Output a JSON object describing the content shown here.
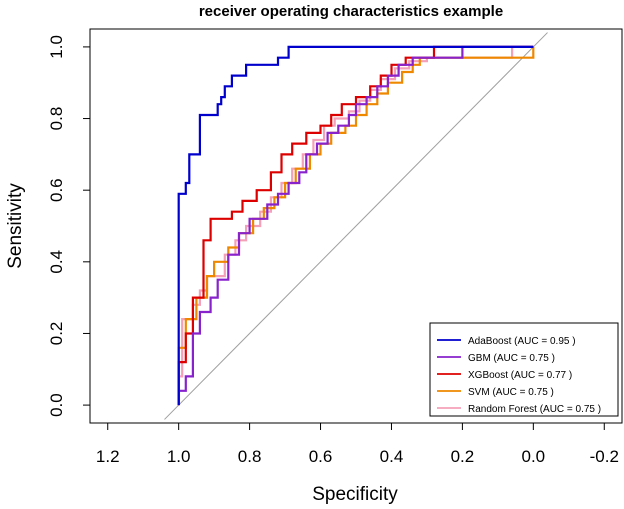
{
  "chart_data": {
    "type": "line",
    "title": "receiver operating characteristics example",
    "xlabel": "Specificity",
    "ylabel": "Sensitivity",
    "xlim": [
      1.25,
      -0.25
    ],
    "ylim": [
      -0.05,
      1.05
    ],
    "x_ticks": [
      1.2,
      1.0,
      0.8,
      0.6,
      0.4,
      0.2,
      0.0,
      -0.2
    ],
    "x_tick_labels": [
      "1.2",
      "1.0",
      "0.8",
      "0.6",
      "0.4",
      "0.2",
      "0.0",
      "-0.2"
    ],
    "y_ticks": [
      0.0,
      0.2,
      0.4,
      0.6,
      0.8,
      1.0
    ],
    "y_tick_labels": [
      "0.0",
      "0.2",
      "0.4",
      "0.6",
      "0.8",
      "1.0"
    ],
    "diagonal": {
      "x": [
        1.04,
        -0.04
      ],
      "y": [
        -0.04,
        1.04
      ],
      "color": "#a0a0a0"
    },
    "legend_position": "bottom-right",
    "series": [
      {
        "name": "AdaBoost (AUC = 0.95 )",
        "color": "#0000cc",
        "points": [
          [
            1.0,
            0.0
          ],
          [
            1.0,
            0.59
          ],
          [
            0.98,
            0.59
          ],
          [
            0.98,
            0.62
          ],
          [
            0.97,
            0.62
          ],
          [
            0.97,
            0.7
          ],
          [
            0.94,
            0.7
          ],
          [
            0.94,
            0.81
          ],
          [
            0.89,
            0.81
          ],
          [
            0.89,
            0.84
          ],
          [
            0.88,
            0.84
          ],
          [
            0.88,
            0.86
          ],
          [
            0.87,
            0.86
          ],
          [
            0.87,
            0.89
          ],
          [
            0.85,
            0.89
          ],
          [
            0.85,
            0.92
          ],
          [
            0.81,
            0.92
          ],
          [
            0.81,
            0.95
          ],
          [
            0.72,
            0.95
          ],
          [
            0.72,
            0.97
          ],
          [
            0.69,
            0.97
          ],
          [
            0.69,
            1.0
          ],
          [
            0.0,
            1.0
          ]
        ]
      },
      {
        "name": "GBM (AUC = 0.75 )",
        "color": "#8822cc",
        "points": [
          [
            1.0,
            0.0
          ],
          [
            1.0,
            0.04
          ],
          [
            0.98,
            0.04
          ],
          [
            0.98,
            0.08
          ],
          [
            0.96,
            0.08
          ],
          [
            0.96,
            0.2
          ],
          [
            0.94,
            0.2
          ],
          [
            0.94,
            0.26
          ],
          [
            0.91,
            0.26
          ],
          [
            0.91,
            0.3
          ],
          [
            0.89,
            0.3
          ],
          [
            0.89,
            0.35
          ],
          [
            0.86,
            0.35
          ],
          [
            0.86,
            0.42
          ],
          [
            0.83,
            0.42
          ],
          [
            0.83,
            0.48
          ],
          [
            0.8,
            0.48
          ],
          [
            0.8,
            0.52
          ],
          [
            0.75,
            0.52
          ],
          [
            0.75,
            0.56
          ],
          [
            0.72,
            0.56
          ],
          [
            0.72,
            0.59
          ],
          [
            0.69,
            0.59
          ],
          [
            0.69,
            0.62
          ],
          [
            0.66,
            0.62
          ],
          [
            0.66,
            0.65
          ],
          [
            0.64,
            0.65
          ],
          [
            0.64,
            0.7
          ],
          [
            0.61,
            0.7
          ],
          [
            0.61,
            0.73
          ],
          [
            0.58,
            0.73
          ],
          [
            0.58,
            0.76
          ],
          [
            0.55,
            0.76
          ],
          [
            0.55,
            0.78
          ],
          [
            0.52,
            0.78
          ],
          [
            0.52,
            0.81
          ],
          [
            0.5,
            0.81
          ],
          [
            0.5,
            0.84
          ],
          [
            0.47,
            0.84
          ],
          [
            0.47,
            0.86
          ],
          [
            0.44,
            0.86
          ],
          [
            0.44,
            0.89
          ],
          [
            0.41,
            0.89
          ],
          [
            0.41,
            0.92
          ],
          [
            0.38,
            0.92
          ],
          [
            0.38,
            0.95
          ],
          [
            0.34,
            0.95
          ],
          [
            0.34,
            0.97
          ],
          [
            0.2,
            0.97
          ],
          [
            0.2,
            1.0
          ],
          [
            0.0,
            1.0
          ]
        ]
      },
      {
        "name": "XGBoost (AUC = 0.77 )",
        "color": "#dd0000",
        "points": [
          [
            1.0,
            0.0
          ],
          [
            1.0,
            0.12
          ],
          [
            0.98,
            0.12
          ],
          [
            0.98,
            0.2
          ],
          [
            0.96,
            0.2
          ],
          [
            0.96,
            0.3
          ],
          [
            0.93,
            0.3
          ],
          [
            0.93,
            0.46
          ],
          [
            0.91,
            0.46
          ],
          [
            0.91,
            0.52
          ],
          [
            0.85,
            0.52
          ],
          [
            0.85,
            0.54
          ],
          [
            0.82,
            0.54
          ],
          [
            0.82,
            0.57
          ],
          [
            0.78,
            0.57
          ],
          [
            0.78,
            0.6
          ],
          [
            0.74,
            0.6
          ],
          [
            0.74,
            0.65
          ],
          [
            0.71,
            0.65
          ],
          [
            0.71,
            0.7
          ],
          [
            0.68,
            0.7
          ],
          [
            0.68,
            0.73
          ],
          [
            0.64,
            0.73
          ],
          [
            0.64,
            0.76
          ],
          [
            0.6,
            0.76
          ],
          [
            0.6,
            0.78
          ],
          [
            0.57,
            0.78
          ],
          [
            0.57,
            0.81
          ],
          [
            0.54,
            0.81
          ],
          [
            0.54,
            0.84
          ],
          [
            0.5,
            0.84
          ],
          [
            0.5,
            0.86
          ],
          [
            0.46,
            0.86
          ],
          [
            0.46,
            0.89
          ],
          [
            0.43,
            0.89
          ],
          [
            0.43,
            0.92
          ],
          [
            0.4,
            0.92
          ],
          [
            0.4,
            0.95
          ],
          [
            0.36,
            0.95
          ],
          [
            0.36,
            0.97
          ],
          [
            0.28,
            0.97
          ],
          [
            0.28,
            1.0
          ],
          [
            0.0,
            1.0
          ]
        ]
      },
      {
        "name": "SVM (AUC = 0.75 )",
        "color": "#ee8800",
        "points": [
          [
            1.0,
            0.0
          ],
          [
            1.0,
            0.16
          ],
          [
            0.98,
            0.16
          ],
          [
            0.98,
            0.24
          ],
          [
            0.95,
            0.24
          ],
          [
            0.95,
            0.3
          ],
          [
            0.92,
            0.3
          ],
          [
            0.92,
            0.36
          ],
          [
            0.9,
            0.36
          ],
          [
            0.9,
            0.4
          ],
          [
            0.86,
            0.4
          ],
          [
            0.86,
            0.44
          ],
          [
            0.83,
            0.44
          ],
          [
            0.83,
            0.48
          ],
          [
            0.79,
            0.48
          ],
          [
            0.79,
            0.52
          ],
          [
            0.76,
            0.52
          ],
          [
            0.76,
            0.55
          ],
          [
            0.73,
            0.55
          ],
          [
            0.73,
            0.58
          ],
          [
            0.7,
            0.58
          ],
          [
            0.7,
            0.62
          ],
          [
            0.67,
            0.62
          ],
          [
            0.67,
            0.66
          ],
          [
            0.63,
            0.66
          ],
          [
            0.63,
            0.7
          ],
          [
            0.6,
            0.7
          ],
          [
            0.6,
            0.73
          ],
          [
            0.57,
            0.73
          ],
          [
            0.57,
            0.76
          ],
          [
            0.53,
            0.76
          ],
          [
            0.53,
            0.78
          ],
          [
            0.5,
            0.78
          ],
          [
            0.5,
            0.81
          ],
          [
            0.47,
            0.81
          ],
          [
            0.47,
            0.84
          ],
          [
            0.44,
            0.84
          ],
          [
            0.44,
            0.87
          ],
          [
            0.41,
            0.87
          ],
          [
            0.41,
            0.9
          ],
          [
            0.37,
            0.9
          ],
          [
            0.37,
            0.93
          ],
          [
            0.34,
            0.93
          ],
          [
            0.34,
            0.95
          ],
          [
            0.32,
            0.95
          ],
          [
            0.32,
            0.97
          ],
          [
            0.0,
            0.97
          ],
          [
            0.0,
            1.0
          ]
        ]
      },
      {
        "name": "Random Forest (AUC = 0.75 )",
        "color": "#f4a0b8",
        "points": [
          [
            1.0,
            0.0
          ],
          [
            1.0,
            0.08
          ],
          [
            0.99,
            0.08
          ],
          [
            0.99,
            0.24
          ],
          [
            0.96,
            0.24
          ],
          [
            0.96,
            0.28
          ],
          [
            0.94,
            0.28
          ],
          [
            0.94,
            0.32
          ],
          [
            0.92,
            0.32
          ],
          [
            0.92,
            0.36
          ],
          [
            0.87,
            0.36
          ],
          [
            0.87,
            0.42
          ],
          [
            0.84,
            0.42
          ],
          [
            0.84,
            0.46
          ],
          [
            0.81,
            0.46
          ],
          [
            0.81,
            0.5
          ],
          [
            0.77,
            0.5
          ],
          [
            0.77,
            0.54
          ],
          [
            0.74,
            0.54
          ],
          [
            0.74,
            0.58
          ],
          [
            0.71,
            0.58
          ],
          [
            0.71,
            0.62
          ],
          [
            0.68,
            0.62
          ],
          [
            0.68,
            0.66
          ],
          [
            0.65,
            0.66
          ],
          [
            0.65,
            0.7
          ],
          [
            0.62,
            0.7
          ],
          [
            0.62,
            0.74
          ],
          [
            0.59,
            0.74
          ],
          [
            0.59,
            0.78
          ],
          [
            0.56,
            0.78
          ],
          [
            0.56,
            0.8
          ],
          [
            0.52,
            0.8
          ],
          [
            0.52,
            0.82
          ],
          [
            0.49,
            0.82
          ],
          [
            0.49,
            0.85
          ],
          [
            0.46,
            0.85
          ],
          [
            0.46,
            0.88
          ],
          [
            0.43,
            0.88
          ],
          [
            0.43,
            0.91
          ],
          [
            0.39,
            0.91
          ],
          [
            0.39,
            0.94
          ],
          [
            0.35,
            0.94
          ],
          [
            0.35,
            0.96
          ],
          [
            0.3,
            0.96
          ],
          [
            0.3,
            0.97
          ],
          [
            0.06,
            0.97
          ],
          [
            0.06,
            1.0
          ],
          [
            0.0,
            1.0
          ]
        ]
      }
    ]
  }
}
